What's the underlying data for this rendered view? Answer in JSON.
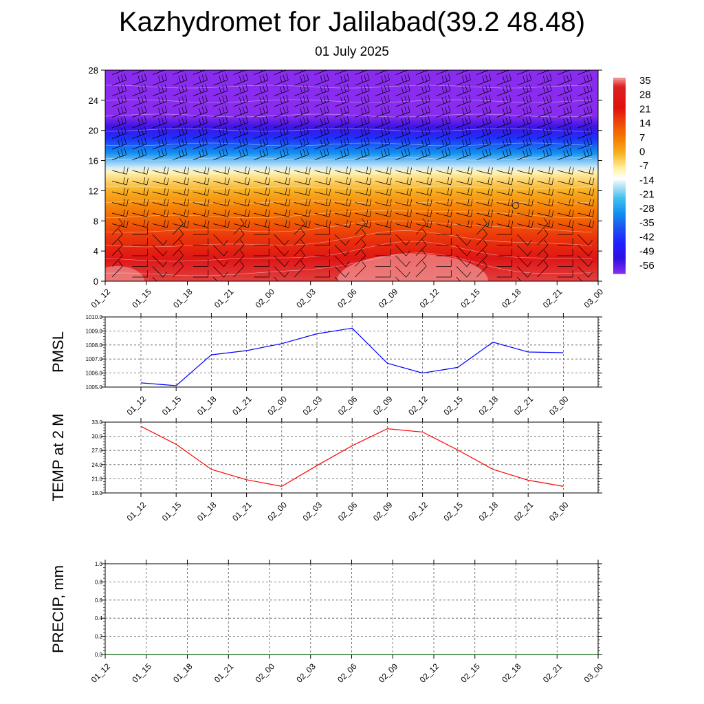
{
  "title": "Kazhydromet for Jalilabad(39.2 48.48)",
  "subtitle": "01 July 2025",
  "time_labels": [
    "01_12",
    "01_15",
    "01_18",
    "01_21",
    "02_00",
    "02_03",
    "02_06",
    "02_09",
    "02_12",
    "02_15",
    "02_18",
    "02_21",
    "03_00"
  ],
  "chart_data": [
    {
      "type": "heatmap",
      "name_hint": "vertical cross-section",
      "y_ticks": [
        "0",
        "4",
        "8",
        "12",
        "16",
        "20",
        "24",
        "28"
      ],
      "ylim": [
        0,
        28
      ],
      "colorbar": {
        "labels": [
          "35",
          "28",
          "21",
          "14",
          "7",
          "0",
          "-7",
          "-14",
          "-21",
          "-28",
          "-35",
          "-42",
          "-49",
          "-56"
        ],
        "stops": [
          {
            "v": 35,
            "color": "#f0a0a0"
          },
          {
            "v": 31,
            "color": "#dd2020"
          },
          {
            "v": 21,
            "color": "#e01010"
          },
          {
            "v": 14,
            "color": "#f04808"
          },
          {
            "v": 7,
            "color": "#f47a00"
          },
          {
            "v": 0,
            "color": "#f8b020"
          },
          {
            "v": -7,
            "color": "#fff0a0"
          },
          {
            "v": -12,
            "color": "#ffffff"
          },
          {
            "v": -14,
            "color": "#d8eef8"
          },
          {
            "v": -21,
            "color": "#40c0f0"
          },
          {
            "v": -28,
            "color": "#1090f0"
          },
          {
            "v": -35,
            "color": "#2050f0"
          },
          {
            "v": -42,
            "color": "#2020ff"
          },
          {
            "v": -49,
            "color": "#3010e0"
          },
          {
            "v": -56,
            "color": "#8a2cf0"
          }
        ]
      },
      "height_profile": [
        {
          "y": 0,
          "t": 32
        },
        {
          "y": 3,
          "t": 24
        },
        {
          "y": 6,
          "t": 16
        },
        {
          "y": 9,
          "t": 8
        },
        {
          "y": 12,
          "t": 0
        },
        {
          "y": 14.5,
          "t": -8
        },
        {
          "y": 15,
          "t": -14
        },
        {
          "y": 17,
          "t": -28
        },
        {
          "y": 19,
          "t": -40
        },
        {
          "y": 20.5,
          "t": -50
        },
        {
          "y": 22,
          "t": -56
        },
        {
          "y": 28,
          "t": -56
        }
      ]
    },
    {
      "type": "line",
      "ylabel": "PMSL",
      "ylim": [
        1005.0,
        1010.0
      ],
      "y_ticks": [
        "1005.0",
        "1006.0",
        "1007.0",
        "1008.0",
        "1009.0",
        "1010.0"
      ],
      "color": "#0000ff",
      "values": [
        1005.3,
        1005.1,
        1007.3,
        1007.6,
        1008.1,
        1008.8,
        1009.2,
        1006.7,
        1006.0,
        1006.4,
        1008.2,
        1007.5,
        1007.45
      ]
    },
    {
      "type": "line",
      "ylabel": "TEMP at 2 M",
      "ylim": [
        18.0,
        33.0
      ],
      "y_ticks": [
        "18.0",
        "21.0",
        "24.0",
        "27.0",
        "30.0",
        "33.0"
      ],
      "color": "#ff0000",
      "values": [
        32.1,
        28.3,
        23.0,
        20.8,
        19.4,
        23.8,
        28.0,
        31.6,
        30.9,
        27.1,
        23.0,
        20.7,
        19.4
      ]
    },
    {
      "type": "line",
      "ylabel": "PRECIP, mm",
      "ylim": [
        0.0,
        1.0
      ],
      "y_ticks": [
        "0.0",
        "0.2",
        "0.4",
        "0.6",
        "0.8",
        "1.0"
      ],
      "color": "#006400",
      "values": [
        0,
        0,
        0,
        0,
        0,
        0,
        0,
        0,
        0,
        0,
        0,
        0,
        0
      ]
    }
  ]
}
